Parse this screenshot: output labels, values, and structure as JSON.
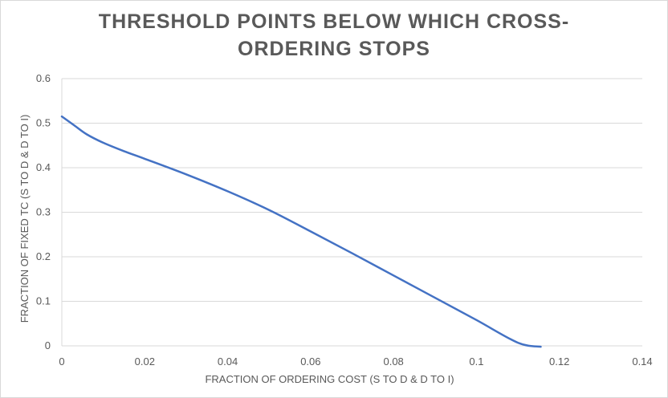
{
  "chart_data": {
    "type": "line",
    "title_lines": [
      "THRESHOLD POINTS BELOW WHICH CROSS-",
      "ORDERING STOPS"
    ],
    "xlabel": "FRACTION OF ORDERING COST (S TO D & D TO I)",
    "ylabel": "FRACTION OF FIXED TC (S TO D & D TO I)",
    "xlim": [
      0,
      0.14
    ],
    "ylim": [
      0,
      0.6
    ],
    "x_ticks": [
      0,
      0.02,
      0.04,
      0.06,
      0.08,
      0.1,
      0.12,
      0.14
    ],
    "x_tick_labels": [
      "0",
      "0.02",
      "0.04",
      "0.06",
      "0.08",
      "0.1",
      "0.12",
      "0.14"
    ],
    "y_ticks": [
      0,
      0.1,
      0.2,
      0.3,
      0.4,
      0.5,
      0.6
    ],
    "y_tick_labels": [
      "0",
      "0.1",
      "0.2",
      "0.3",
      "0.4",
      "0.5",
      "0.6"
    ],
    "grid": "horizontal",
    "legend": "none",
    "series": [
      {
        "color": "#4472c4",
        "x": [
          0,
          0.003,
          0.006,
          0.01,
          0.015,
          0.02,
          0.03,
          0.04,
          0.05,
          0.06,
          0.07,
          0.08,
          0.09,
          0.1,
          0.11,
          0.1155
        ],
        "y": [
          0.515,
          0.495,
          0.475,
          0.456,
          0.437,
          0.42,
          0.385,
          0.347,
          0.305,
          0.257,
          0.208,
          0.158,
          0.108,
          0.058,
          0.007,
          -0.002
        ]
      }
    ]
  }
}
